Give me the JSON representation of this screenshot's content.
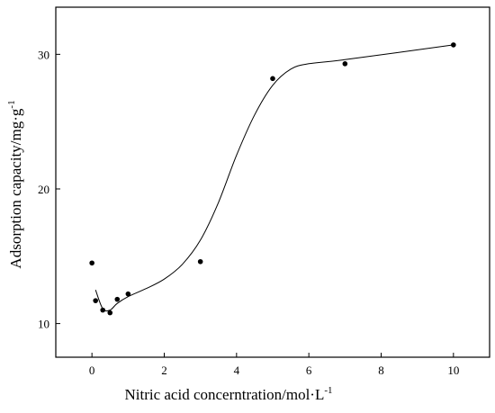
{
  "chart_data": {
    "type": "scatter",
    "xlabel": "Nitric acid concerntration/mol·L",
    "xlabel_sup": "-1",
    "ylabel": "Adsorption capacity/mg·g",
    "ylabel_sup": "-1",
    "xlim": [
      -1,
      11
    ],
    "ylim": [
      7.5,
      33.5
    ],
    "x_ticks": [
      0,
      2,
      4,
      6,
      8,
      10
    ],
    "y_ticks": [
      10,
      20,
      30
    ],
    "grid": false,
    "legend": "none",
    "points": {
      "x": [
        0,
        0.1,
        0.3,
        0.5,
        0.7,
        1,
        3,
        5,
        7,
        10
      ],
      "y": [
        14.5,
        11.7,
        11.0,
        10.8,
        11.8,
        12.2,
        14.6,
        28.2,
        29.3,
        30.7
      ]
    },
    "fit_curve": {
      "x": [
        0.1,
        0.3,
        0.5,
        0.7,
        1,
        1.5,
        2,
        2.5,
        3,
        3.5,
        4,
        4.5,
        5,
        5.5,
        6,
        7,
        10
      ],
      "y": [
        12.5,
        11.1,
        11.0,
        11.5,
        12.0,
        12.6,
        13.3,
        14.4,
        16.2,
        19.0,
        22.5,
        25.5,
        27.7,
        28.9,
        29.3,
        29.6,
        30.7
      ]
    },
    "colors": {
      "axis": "#000000",
      "marker": "#000000",
      "line": "#000000"
    }
  }
}
